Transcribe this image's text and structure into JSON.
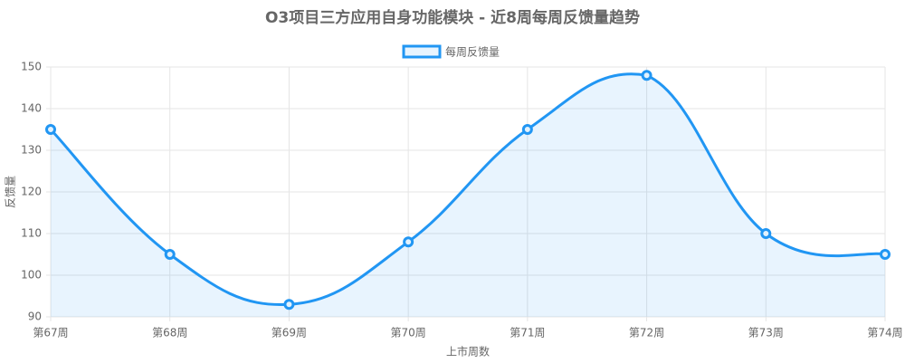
{
  "chart_data": {
    "type": "line",
    "title": "O3项目三方应用自身功能模块 - 近8周每周反馈量趋势",
    "x_label": "上市周数",
    "y_label": "反馈量",
    "categories": [
      "第67周",
      "第68周",
      "第69周",
      "第70周",
      "第71周",
      "第72周",
      "第73周",
      "第74周"
    ],
    "series": [
      {
        "name": "每周反馈量",
        "color": "#2196f3",
        "values": [
          135,
          105,
          93,
          108,
          135,
          148,
          110,
          105
        ]
      }
    ],
    "ylim": [
      90,
      150
    ],
    "yticks": [
      90,
      100,
      110,
      120,
      130,
      140,
      150
    ],
    "grid": true,
    "legend": "top",
    "fill": true
  }
}
